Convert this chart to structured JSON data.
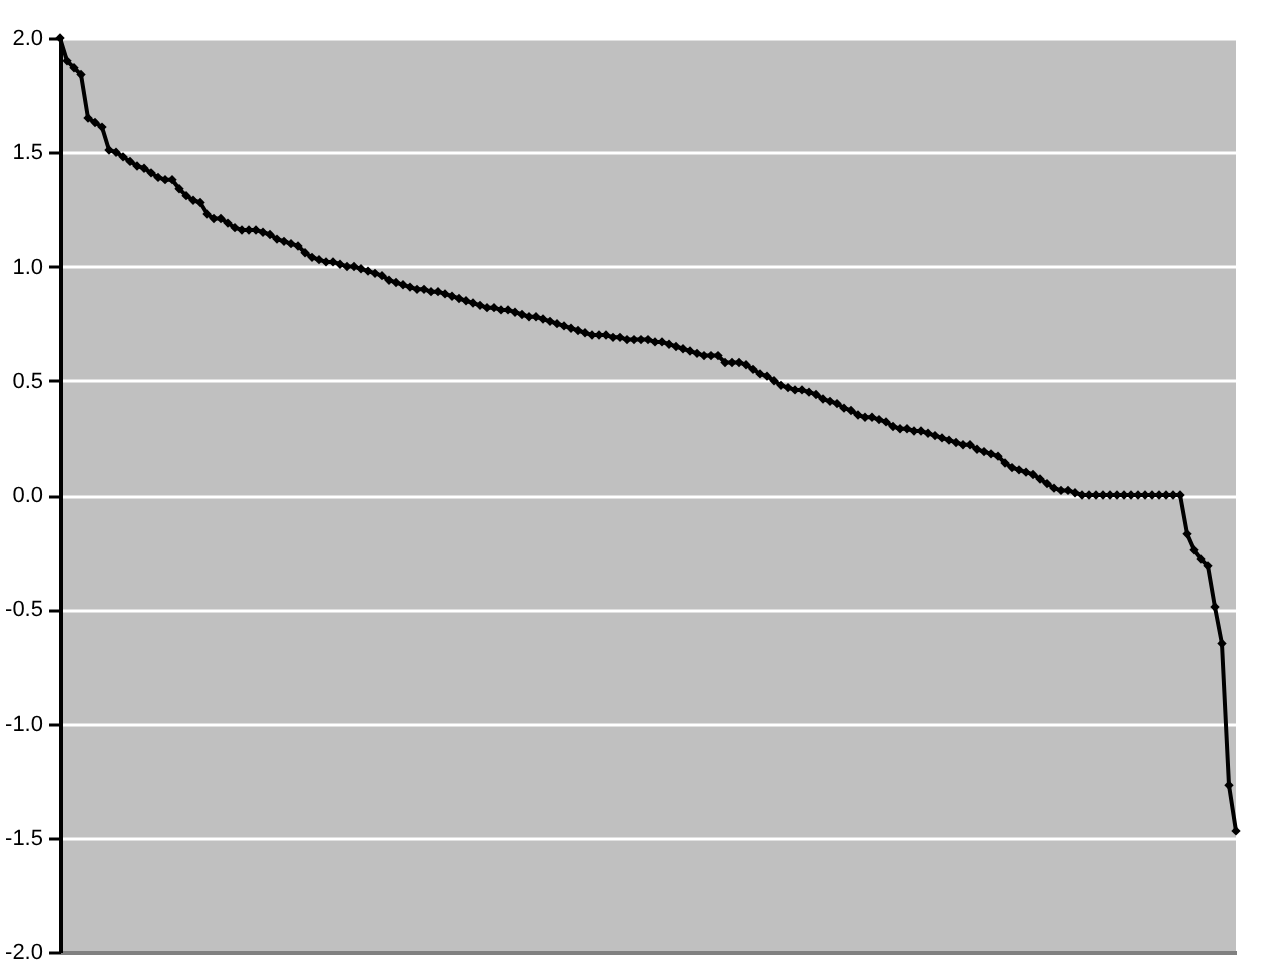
{
  "chart_data": {
    "type": "line",
    "categories": [
      null,
      null,
      null,
      null,
      null,
      null,
      null,
      null,
      null,
      null,
      null,
      null,
      null,
      null,
      null,
      null,
      null,
      null,
      null,
      null,
      null,
      null,
      null,
      null,
      null,
      null,
      null,
      null,
      null,
      null,
      null,
      null,
      null,
      null,
      null,
      null,
      null,
      null,
      null,
      null,
      null,
      null,
      null,
      null,
      null,
      null,
      null,
      null,
      null,
      null,
      null,
      null,
      null,
      null,
      null,
      null,
      null,
      null,
      null,
      null,
      null,
      null,
      null,
      null,
      null,
      null,
      null,
      null,
      null,
      null,
      null,
      null,
      null,
      null,
      null,
      null,
      null,
      null,
      null,
      null,
      null,
      null,
      null,
      null,
      null,
      null,
      null,
      null,
      null,
      null,
      null,
      null,
      null,
      null,
      null,
      null,
      null,
      null,
      null,
      null,
      null,
      null,
      null,
      null,
      null,
      null,
      null,
      null,
      null,
      null,
      null,
      null,
      null,
      null,
      null,
      null,
      null,
      null,
      null,
      null,
      null,
      null,
      null,
      null,
      null,
      null,
      null,
      null,
      null,
      null,
      null,
      null,
      null,
      null,
      null,
      null,
      null,
      null,
      null,
      null,
      null,
      null,
      null,
      null,
      null,
      null,
      null,
      null,
      null,
      null,
      null,
      null,
      null,
      null,
      null,
      null,
      null,
      null,
      null,
      null,
      null,
      null,
      null,
      null,
      null,
      null,
      null,
      null,
      null
    ],
    "series": [
      {
        "color": "#000000",
        "values": [
          2.0,
          1.9,
          1.87,
          1.84,
          1.65,
          1.63,
          1.61,
          1.51,
          1.5,
          1.48,
          1.46,
          1.44,
          1.43,
          1.41,
          1.39,
          1.38,
          1.38,
          1.34,
          1.31,
          1.29,
          1.28,
          1.23,
          1.21,
          1.21,
          1.19,
          1.17,
          1.16,
          1.16,
          1.16,
          1.15,
          1.14,
          1.12,
          1.11,
          1.1,
          1.09,
          1.06,
          1.04,
          1.03,
          1.02,
          1.02,
          1.01,
          1.0,
          1.0,
          0.99,
          0.98,
          0.97,
          0.96,
          0.94,
          0.93,
          0.92,
          0.91,
          0.9,
          0.9,
          0.89,
          0.89,
          0.88,
          0.87,
          0.86,
          0.85,
          0.84,
          0.83,
          0.82,
          0.82,
          0.81,
          0.81,
          0.8,
          0.79,
          0.78,
          0.78,
          0.77,
          0.76,
          0.75,
          0.74,
          0.73,
          0.72,
          0.71,
          0.7,
          0.7,
          0.7,
          0.69,
          0.69,
          0.68,
          0.68,
          0.68,
          0.68,
          0.67,
          0.67,
          0.66,
          0.65,
          0.64,
          0.63,
          0.62,
          0.61,
          0.61,
          0.61,
          0.58,
          0.58,
          0.58,
          0.57,
          0.55,
          0.53,
          0.52,
          0.5,
          0.48,
          0.47,
          0.46,
          0.46,
          0.45,
          0.44,
          0.42,
          0.41,
          0.4,
          0.38,
          0.37,
          0.35,
          0.34,
          0.34,
          0.33,
          0.32,
          0.3,
          0.29,
          0.29,
          0.28,
          0.28,
          0.27,
          0.26,
          0.25,
          0.24,
          0.23,
          0.22,
          0.22,
          0.2,
          0.19,
          0.18,
          0.17,
          0.14,
          0.12,
          0.11,
          0.1,
          0.09,
          0.07,
          0.05,
          0.03,
          0.02,
          0.02,
          0.01,
          0.0,
          0.0,
          0.0,
          0.0,
          0.0,
          0.0,
          0.0,
          0.0,
          0.0,
          0.0,
          0.0,
          0.0,
          0.0,
          0.0,
          0.0,
          -0.17,
          -0.24,
          -0.28,
          -0.31,
          -0.49,
          -0.65,
          -1.27,
          -1.47
        ]
      }
    ],
    "ylim": [
      -2,
      2
    ],
    "yticks": [
      {
        "value": -2,
        "label": "-2.0"
      },
      {
        "value": -1.5,
        "label": "-1.5"
      },
      {
        "value": -1,
        "label": "-1.0"
      },
      {
        "value": -0.5,
        "label": "-0.5"
      },
      {
        "value": 0,
        "label": "0.0"
      },
      {
        "value": 0.5,
        "label": "0.5"
      },
      {
        "value": 1,
        "label": "1.0"
      },
      {
        "value": 1.5,
        "label": "1.5"
      },
      {
        "value": 2,
        "label": "2.0"
      }
    ],
    "grid": "y",
    "marker": "diamond",
    "line_style": "solid",
    "tick_labels": "y"
  }
}
